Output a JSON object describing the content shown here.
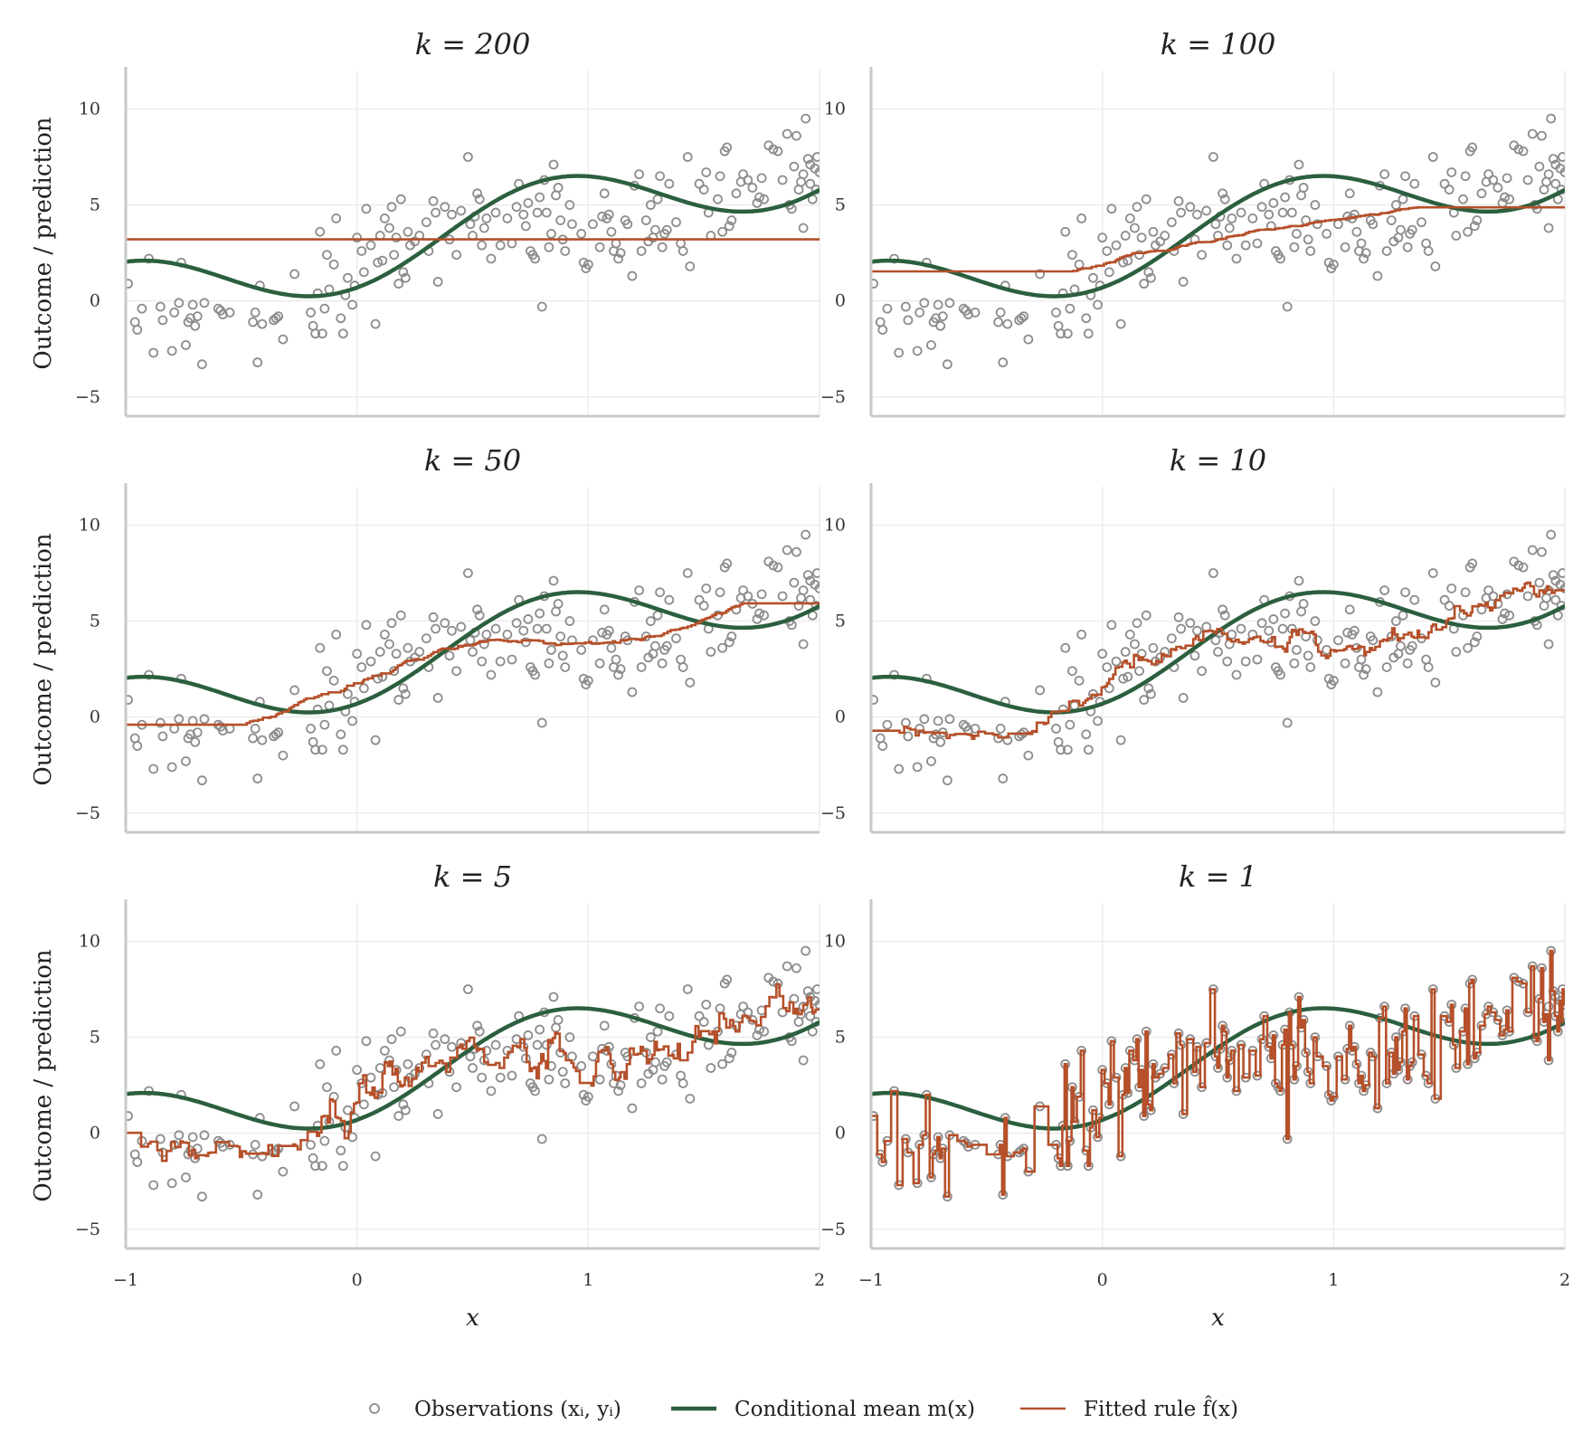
{
  "figure": {
    "legend": [
      {
        "key": "observations",
        "label": "Observations (xᵢ, yᵢ)"
      },
      {
        "key": "mean",
        "label": "Conditional mean m(x)"
      },
      {
        "key": "fitted",
        "label": "Fitted rule f̂(x)"
      }
    ],
    "colors": {
      "observations": "#8c8c8c",
      "mean": "#2b5f3e",
      "fitted": "#b5502a",
      "grid": "#ececec",
      "axis": "#c8c8c8"
    }
  },
  "chart_data": [
    {
      "type": "scatter",
      "title": "k = 200",
      "k": 200,
      "xlabel": "",
      "ylabel": "Outcome / prediction",
      "xlim": [
        -1,
        2
      ],
      "ylim": [
        -6,
        12
      ],
      "xticks": [
        "−1",
        "0",
        "1",
        "2"
      ],
      "yticks": [
        "−5",
        "0",
        "5",
        "10"
      ],
      "grid": true
    },
    {
      "type": "scatter",
      "title": "k = 100",
      "k": 100,
      "xlabel": "",
      "ylabel": "",
      "xlim": [
        -1,
        2
      ],
      "ylim": [
        -6,
        12
      ],
      "xticks": [
        "−1",
        "0",
        "1",
        "2"
      ],
      "yticks": [
        "−5",
        "0",
        "5",
        "10"
      ],
      "grid": true
    },
    {
      "type": "scatter",
      "title": "k = 50",
      "k": 50,
      "xlabel": "",
      "ylabel": "Outcome / prediction",
      "xlim": [
        -1,
        2
      ],
      "ylim": [
        -6,
        12
      ],
      "xticks": [
        "−1",
        "0",
        "1",
        "2"
      ],
      "yticks": [
        "−5",
        "0",
        "5",
        "10"
      ],
      "grid": true
    },
    {
      "type": "scatter",
      "title": "k = 10",
      "k": 10,
      "xlabel": "",
      "ylabel": "",
      "xlim": [
        -1,
        2
      ],
      "ylim": [
        -6,
        12
      ],
      "xticks": [
        "−1",
        "0",
        "1",
        "2"
      ],
      "yticks": [
        "−5",
        "0",
        "5",
        "10"
      ],
      "grid": true
    },
    {
      "type": "scatter",
      "title": "k = 5",
      "k": 5,
      "xlabel": "x",
      "ylabel": "Outcome / prediction",
      "xlim": [
        -1,
        2
      ],
      "ylim": [
        -6,
        12
      ],
      "xticks": [
        "−1",
        "0",
        "1",
        "2"
      ],
      "yticks": [
        "−5",
        "0",
        "5",
        "10"
      ],
      "grid": true
    },
    {
      "type": "scatter",
      "title": "k = 1",
      "k": 1,
      "xlabel": "x",
      "ylabel": "",
      "xlim": [
        -1,
        2
      ],
      "ylim": [
        -6,
        12
      ],
      "xticks": [
        "−1",
        "0",
        "1",
        "2"
      ],
      "yticks": [
        "−5",
        "0",
        "5",
        "10"
      ],
      "grid": true
    }
  ],
  "observations": [
    [
      -0.99,
      0.9
    ],
    [
      -0.96,
      -1.1
    ],
    [
      -0.95,
      -1.5
    ],
    [
      -0.93,
      -0.4
    ],
    [
      -0.9,
      2.2
    ],
    [
      -0.88,
      -2.7
    ],
    [
      -0.85,
      -0.3
    ],
    [
      -0.84,
      -1.0
    ],
    [
      -0.8,
      -2.6
    ],
    [
      -0.79,
      -0.6
    ],
    [
      -0.77,
      -0.1
    ],
    [
      -0.76,
      2.0
    ],
    [
      -0.74,
      -2.3
    ],
    [
      -0.73,
      -1.1
    ],
    [
      -0.72,
      -0.9
    ],
    [
      -0.71,
      -0.2
    ],
    [
      -0.7,
      -1.3
    ],
    [
      -0.69,
      -0.8
    ],
    [
      -0.67,
      -3.3
    ],
    [
      -0.66,
      -0.1
    ],
    [
      -0.6,
      -0.4
    ],
    [
      -0.59,
      -0.5
    ],
    [
      -0.58,
      -0.7
    ],
    [
      -0.55,
      -0.6
    ],
    [
      -0.45,
      -1.1
    ],
    [
      -0.44,
      -0.6
    ],
    [
      -0.43,
      -3.2
    ],
    [
      -0.42,
      0.8
    ],
    [
      -0.41,
      -1.2
    ],
    [
      -0.36,
      -1.0
    ],
    [
      -0.35,
      -0.9
    ],
    [
      -0.34,
      -0.8
    ],
    [
      -0.32,
      -2.0
    ],
    [
      -0.27,
      1.4
    ],
    [
      -0.2,
      -0.6
    ],
    [
      -0.19,
      -1.3
    ],
    [
      -0.18,
      -1.7
    ],
    [
      -0.17,
      0.4
    ],
    [
      -0.16,
      3.6
    ],
    [
      -0.15,
      -1.7
    ],
    [
      -0.14,
      -0.4
    ],
    [
      -0.13,
      2.4
    ],
    [
      -0.12,
      0.6
    ],
    [
      -0.1,
      1.9
    ],
    [
      -0.09,
      4.3
    ],
    [
      -0.07,
      -0.9
    ],
    [
      -0.06,
      -1.7
    ],
    [
      -0.05,
      0.3
    ],
    [
      -0.04,
      1.2
    ],
    [
      -0.02,
      -0.2
    ],
    [
      -0.01,
      0.8
    ],
    [
      0.0,
      3.3
    ],
    [
      0.02,
      2.6
    ],
    [
      0.03,
      1.5
    ],
    [
      0.04,
      4.8
    ],
    [
      0.06,
      2.9
    ],
    [
      0.08,
      -1.2
    ],
    [
      0.09,
      2.0
    ],
    [
      0.1,
      3.4
    ],
    [
      0.11,
      2.1
    ],
    [
      0.12,
      4.3
    ],
    [
      0.14,
      3.8
    ],
    [
      0.15,
      4.9
    ],
    [
      0.16,
      2.4
    ],
    [
      0.17,
      3.3
    ],
    [
      0.18,
      0.9
    ],
    [
      0.19,
      5.3
    ],
    [
      0.2,
      1.5
    ],
    [
      0.21,
      1.2
    ],
    [
      0.22,
      3.6
    ],
    [
      0.23,
      2.9
    ],
    [
      0.25,
      3.1
    ],
    [
      0.27,
      3.4
    ],
    [
      0.3,
      4.1
    ],
    [
      0.31,
      2.6
    ],
    [
      0.33,
      5.2
    ],
    [
      0.34,
      4.6
    ],
    [
      0.35,
      1.0
    ],
    [
      0.38,
      4.9
    ],
    [
      0.4,
      3.2
    ],
    [
      0.41,
      4.5
    ],
    [
      0.43,
      2.4
    ],
    [
      0.45,
      4.7
    ],
    [
      0.48,
      7.5
    ],
    [
      0.49,
      4.0
    ],
    [
      0.5,
      3.4
    ],
    [
      0.51,
      4.4
    ],
    [
      0.52,
      5.6
    ],
    [
      0.53,
      5.3
    ],
    [
      0.54,
      2.9
    ],
    [
      0.55,
      3.8
    ],
    [
      0.56,
      4.3
    ],
    [
      0.58,
      2.2
    ],
    [
      0.6,
      4.6
    ],
    [
      0.62,
      2.9
    ],
    [
      0.65,
      4.3
    ],
    [
      0.67,
      3.0
    ],
    [
      0.69,
      4.9
    ],
    [
      0.7,
      6.1
    ],
    [
      0.72,
      4.5
    ],
    [
      0.73,
      3.9
    ],
    [
      0.74,
      5.1
    ],
    [
      0.75,
      2.6
    ],
    [
      0.76,
      2.4
    ],
    [
      0.77,
      2.2
    ],
    [
      0.78,
      4.6
    ],
    [
      0.79,
      5.4
    ],
    [
      0.8,
      -0.3
    ],
    [
      0.81,
      6.3
    ],
    [
      0.82,
      4.6
    ],
    [
      0.83,
      2.8
    ],
    [
      0.84,
      3.5
    ],
    [
      0.85,
      7.1
    ],
    [
      0.86,
      5.5
    ],
    [
      0.87,
      5.9
    ],
    [
      0.88,
      4.2
    ],
    [
      0.89,
      3.2
    ],
    [
      0.9,
      2.6
    ],
    [
      0.92,
      5.0
    ],
    [
      0.93,
      4.0
    ],
    [
      0.97,
      3.5
    ],
    [
      0.98,
      2.0
    ],
    [
      0.99,
      1.7
    ],
    [
      1.0,
      1.9
    ],
    [
      1.02,
      4.0
    ],
    [
      1.05,
      2.8
    ],
    [
      1.06,
      4.4
    ],
    [
      1.07,
      5.6
    ],
    [
      1.08,
      4.3
    ],
    [
      1.09,
      4.5
    ],
    [
      1.1,
      3.6
    ],
    [
      1.11,
      2.6
    ],
    [
      1.12,
      3.0
    ],
    [
      1.13,
      2.2
    ],
    [
      1.14,
      2.5
    ],
    [
      1.16,
      4.2
    ],
    [
      1.17,
      4.0
    ],
    [
      1.19,
      1.3
    ],
    [
      1.2,
      6.0
    ],
    [
      1.22,
      6.6
    ],
    [
      1.23,
      2.6
    ],
    [
      1.25,
      4.2
    ],
    [
      1.26,
      3.1
    ],
    [
      1.27,
      5.0
    ],
    [
      1.28,
      3.3
    ],
    [
      1.29,
      3.7
    ],
    [
      1.3,
      5.3
    ],
    [
      1.31,
      6.5
    ],
    [
      1.32,
      2.8
    ],
    [
      1.33,
      3.5
    ],
    [
      1.34,
      3.7
    ],
    [
      1.35,
      6.1
    ],
    [
      1.38,
      4.1
    ],
    [
      1.4,
      3.0
    ],
    [
      1.41,
      2.6
    ],
    [
      1.43,
      7.5
    ],
    [
      1.44,
      1.8
    ],
    [
      1.48,
      6.1
    ],
    [
      1.5,
      5.8
    ],
    [
      1.51,
      6.7
    ],
    [
      1.52,
      4.6
    ],
    [
      1.53,
      3.4
    ],
    [
      1.56,
      5.3
    ],
    [
      1.57,
      6.5
    ],
    [
      1.58,
      3.6
    ],
    [
      1.59,
      7.8
    ],
    [
      1.6,
      8.0
    ],
    [
      1.61,
      3.9
    ],
    [
      1.62,
      4.2
    ],
    [
      1.64,
      5.6
    ],
    [
      1.66,
      6.2
    ],
    [
      1.67,
      6.6
    ],
    [
      1.69,
      6.3
    ],
    [
      1.71,
      5.9
    ],
    [
      1.73,
      5.1
    ],
    [
      1.74,
      5.4
    ],
    [
      1.75,
      6.4
    ],
    [
      1.76,
      5.3
    ],
    [
      1.78,
      8.1
    ],
    [
      1.8,
      7.9
    ],
    [
      1.82,
      7.8
    ],
    [
      1.84,
      6.3
    ],
    [
      1.86,
      8.7
    ],
    [
      1.87,
      5.0
    ],
    [
      1.88,
      4.8
    ],
    [
      1.89,
      7.0
    ],
    [
      1.9,
      8.6
    ],
    [
      1.91,
      5.8
    ],
    [
      1.92,
      6.2
    ],
    [
      1.93,
      3.8
    ],
    [
      1.94,
      9.5
    ],
    [
      1.95,
      7.4
    ],
    [
      1.96,
      6.1
    ],
    [
      1.97,
      5.3
    ],
    [
      1.98,
      6.9
    ],
    [
      1.99,
      7.5
    ],
    [
      2.0,
      6.7
    ],
    [
      1.985,
      5.8
    ],
    [
      1.96,
      7.1
    ],
    [
      1.93,
      6.6
    ]
  ]
}
